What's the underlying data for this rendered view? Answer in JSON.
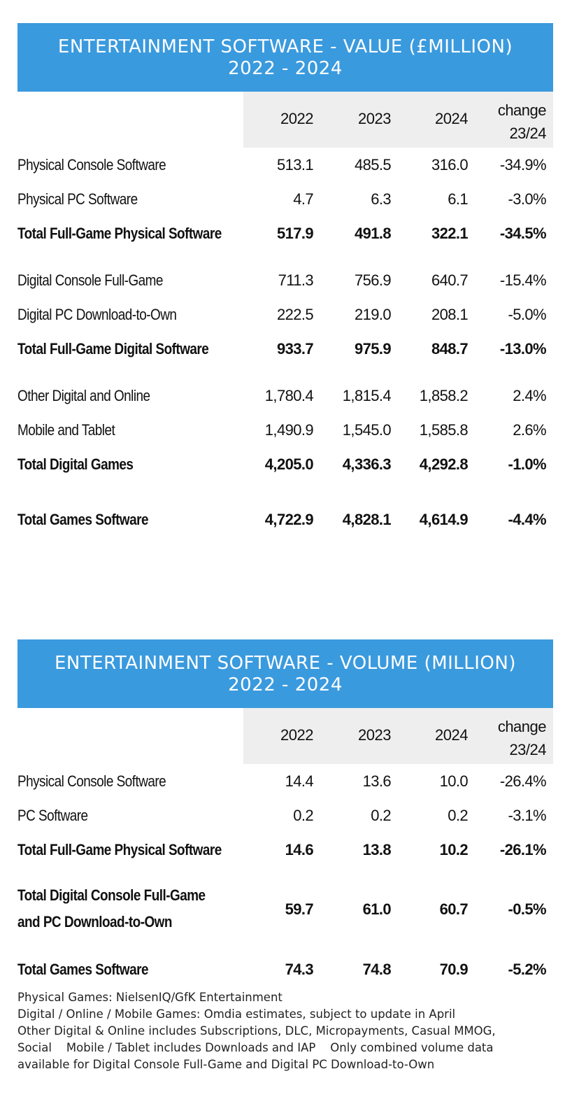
{
  "value_table": {
    "title_line1": "ENTERTAINMENT SOFTWARE - VALUE (£MILLION)",
    "title_line2": "2022 - 2024",
    "headers": {
      "y1": "2022",
      "y2": "2023",
      "y3": "2024",
      "change_line1": "change",
      "change_line2": "23/24"
    },
    "rows": [
      {
        "label": "Physical Console Software",
        "v": [
          "513.1",
          "485.5",
          "316.0",
          "-34.9%"
        ]
      },
      {
        "label": "Physical PC Software",
        "v": [
          "4.7",
          "6.3",
          "6.1",
          "-3.0%"
        ]
      },
      {
        "label": "Total Full-Game Physical Software",
        "v": [
          "517.9",
          "491.8",
          "322.1",
          "-34.5%"
        ]
      },
      {
        "label": "Digital Console Full-Game",
        "v": [
          "711.3",
          "756.9",
          "640.7",
          "-15.4%"
        ]
      },
      {
        "label": "Digital PC Download-to-Own",
        "v": [
          "222.5",
          "219.0",
          "208.1",
          "-5.0%"
        ]
      },
      {
        "label": "Total Full-Game Digital Software",
        "v": [
          "933.7",
          "975.9",
          "848.7",
          "-13.0%"
        ]
      },
      {
        "label": "Other Digital and Online",
        "v": [
          "1,780.4",
          "1,815.4",
          "1,858.2",
          "2.4%"
        ]
      },
      {
        "label": "Mobile and Tablet",
        "v": [
          "1,490.9",
          "1,545.0",
          "1,585.8",
          "2.6%"
        ]
      },
      {
        "label": "Total Digital Games",
        "v": [
          "4,205.0",
          "4,336.3",
          "4,292.8",
          "-1.0%"
        ]
      },
      {
        "label": "Total Games Software",
        "v": [
          "4,722.9",
          "4,828.1",
          "4,614.9",
          "-4.4%"
        ]
      }
    ]
  },
  "volume_table": {
    "title_line1": "ENTERTAINMENT SOFTWARE - VOLUME (MILLION)",
    "title_line2": "2022 - 2024",
    "headers": {
      "y1": "2022",
      "y2": "2023",
      "y3": "2024",
      "change_line1": "change",
      "change_line2": "23/24"
    },
    "rows": [
      {
        "label": "Physical Console Software",
        "v": [
          "14.4",
          "13.6",
          "10.0",
          "-26.4%"
        ]
      },
      {
        "label": "PC Software",
        "v": [
          "0.2",
          "0.2",
          "0.2",
          "-3.1%"
        ]
      },
      {
        "label": "Total Full-Game Physical Software",
        "v": [
          "14.6",
          "13.8",
          "10.2",
          "-26.1%"
        ]
      },
      {
        "label_line1": "Total Digital Console Full-Game",
        "label_line2": "and PC Download-to-Own",
        "v": [
          "59.7",
          "61.0",
          "60.7",
          "-0.5%"
        ]
      },
      {
        "label": "Total Games Software",
        "v": [
          "74.3",
          "74.8",
          "70.9",
          "-5.2%"
        ]
      }
    ]
  },
  "footnotes": [
    "Physical Games: NielsenIQ/GfK Entertainment",
    "Digital / Online / Mobile Games: Omdia estimates, subject to update in April",
    "Other Digital & Online includes Subscriptions, DLC, Micropayments, Casual MMOG,",
    "Social    Mobile / Tablet includes Downloads and IAP    Only combined volume data",
    "available for Digital Console Full-Game and Digital PC Download-to-Own"
  ]
}
